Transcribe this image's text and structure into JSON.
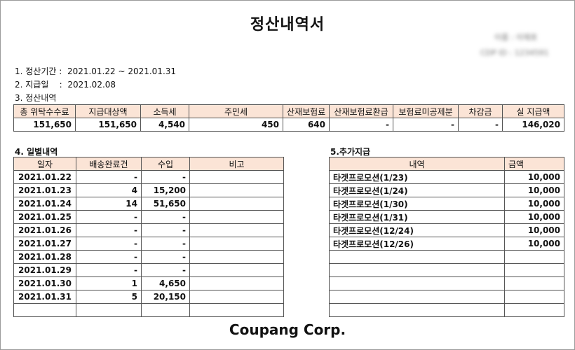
{
  "title": "정산내역서",
  "redacted": {
    "line1": "이름 : 이재호",
    "line2": "CDP ID : 1234591"
  },
  "info": {
    "period_label": "1. 정산기간 :",
    "period_value": "2021.01.22 ~ 2021.01.31",
    "payday_label": "2. 지급일    :",
    "payday_value": "2021.02.08",
    "section3": "3. 정산내역"
  },
  "summary": {
    "headers": [
      "총 위탁수수료",
      "지급대상액",
      "소득세",
      "주민세",
      "산재보험료",
      "산재보험료환급",
      "보험료미공제분",
      "차감금",
      "실 지급액"
    ],
    "values": [
      "151,650",
      "151,650",
      "4,540",
      "450",
      "640",
      "-",
      "-",
      "-",
      "146,020"
    ]
  },
  "daily": {
    "section": "4. 일별내역",
    "headers": [
      "일자",
      "배송완료건",
      "수입",
      "비고"
    ],
    "rows": [
      [
        "2021.01.22",
        "-",
        "-",
        ""
      ],
      [
        "2021.01.23",
        "4",
        "15,200",
        ""
      ],
      [
        "2021.01.24",
        "14",
        "51,650",
        ""
      ],
      [
        "2021.01.25",
        "-",
        "-",
        ""
      ],
      [
        "2021.01.26",
        "-",
        "-",
        ""
      ],
      [
        "2021.01.27",
        "-",
        "-",
        ""
      ],
      [
        "2021.01.28",
        "-",
        "-",
        ""
      ],
      [
        "2021.01.29",
        "-",
        "-",
        ""
      ],
      [
        "2021.01.30",
        "1",
        "4,650",
        ""
      ],
      [
        "2021.01.31",
        "5",
        "20,150",
        ""
      ],
      [
        "",
        "",
        "",
        ""
      ]
    ]
  },
  "extra": {
    "section": "5.추가지급",
    "headers": [
      "내역",
      "금액"
    ],
    "rows": [
      [
        "타겟프로모션(1/23)",
        "10,000"
      ],
      [
        "타겟프로모션(1/24)",
        "10,000"
      ],
      [
        "타겟프로모션(1/30)",
        "10,000"
      ],
      [
        "타겟프로모션(1/31)",
        "10,000"
      ],
      [
        "타겟프로모션(12/24)",
        "10,000"
      ],
      [
        "타겟프로모션(12/26)",
        "10,000"
      ],
      [
        "",
        ""
      ],
      [
        "",
        ""
      ],
      [
        "",
        ""
      ],
      [
        "",
        ""
      ],
      [
        "",
        ""
      ]
    ]
  },
  "footer": "Coupang Corp."
}
